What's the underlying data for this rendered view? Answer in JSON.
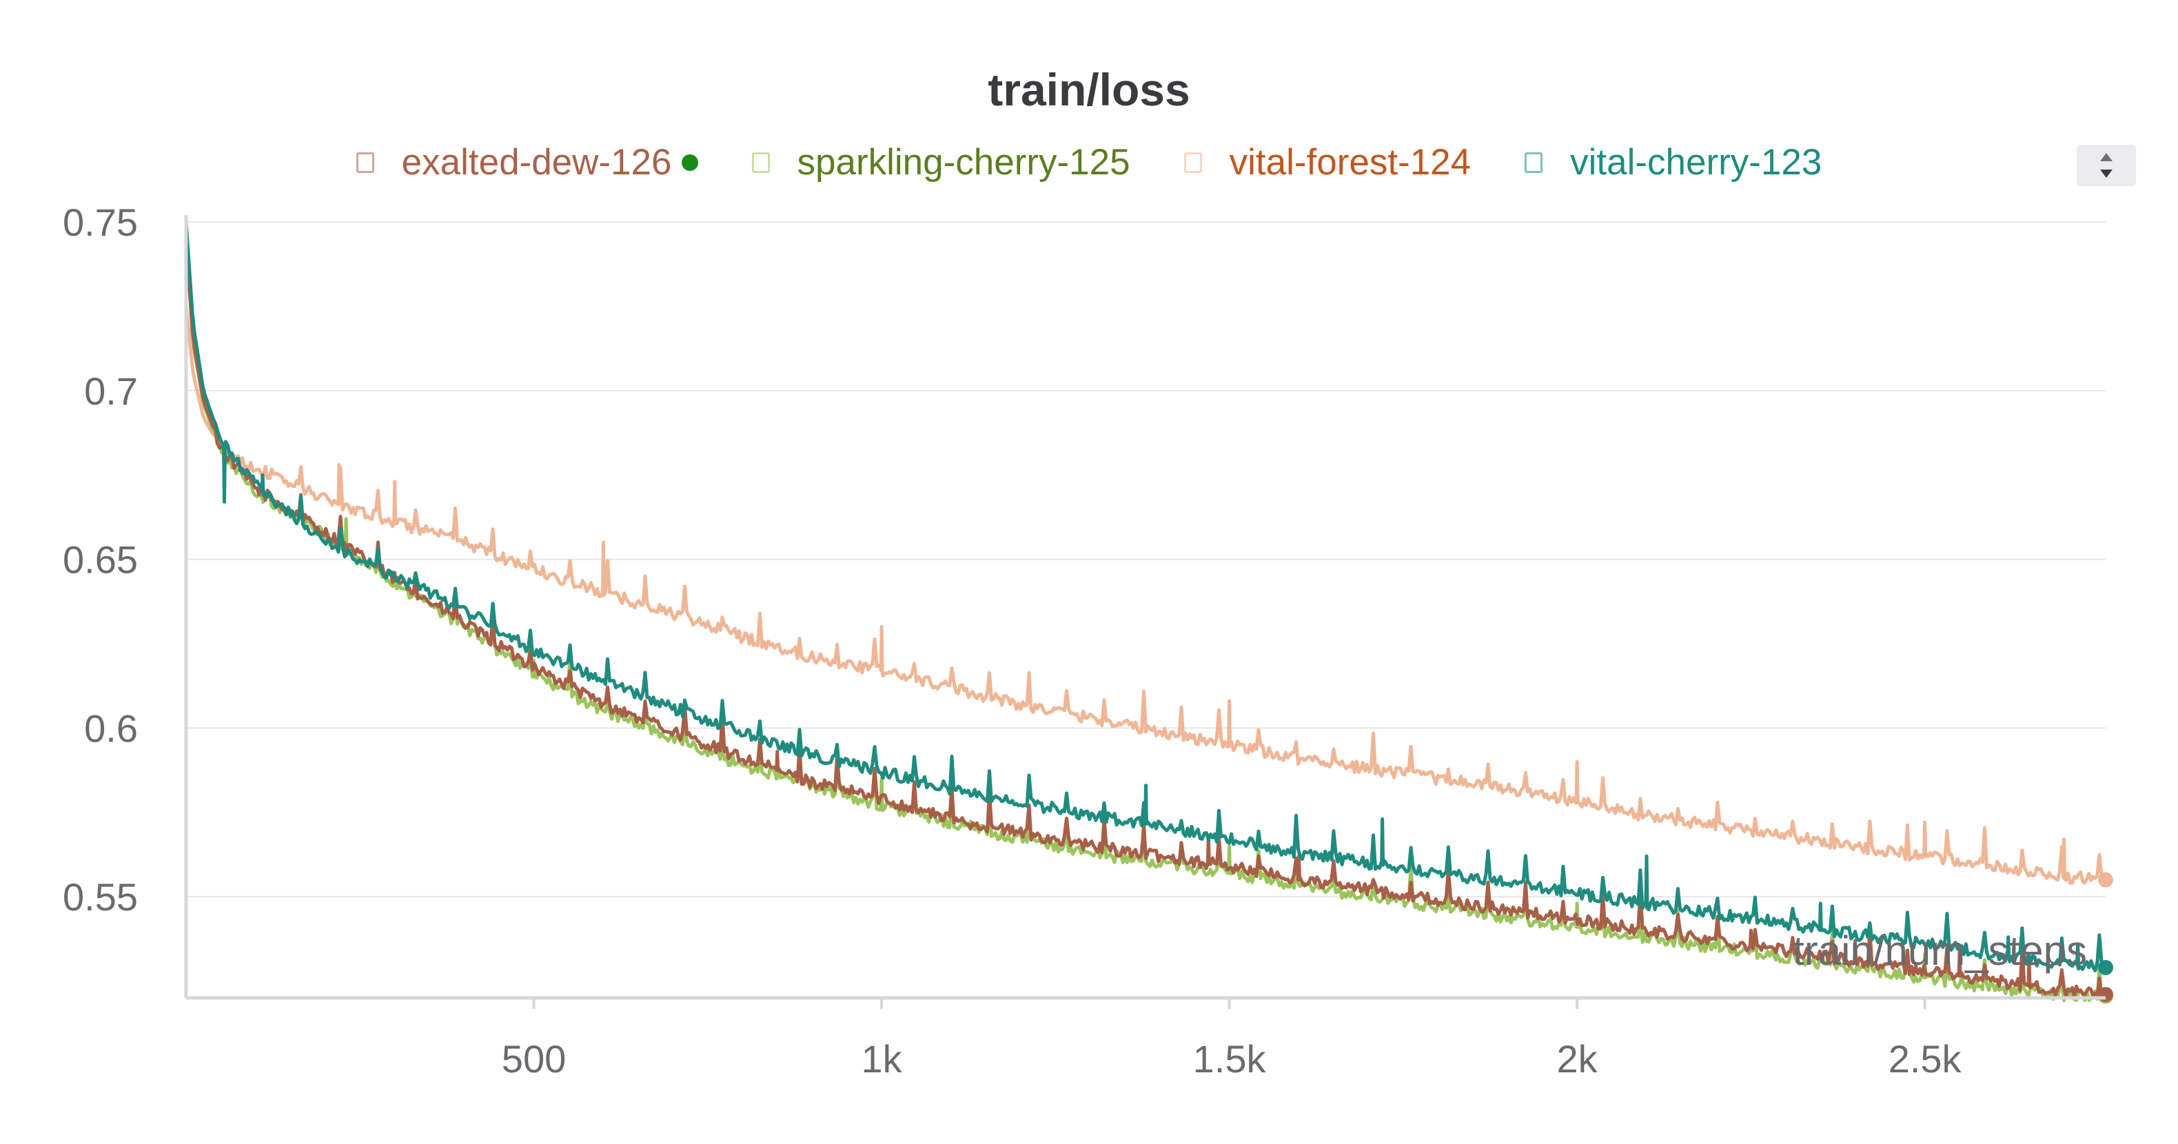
{
  "chart_data": {
    "type": "line",
    "title": "train/loss",
    "xlabel": "train/num_steps",
    "ylabel": "",
    "xlim": [
      0,
      2760
    ],
    "ylim": [
      0.52,
      0.75
    ],
    "x_ticks": [
      500,
      1000,
      1500,
      2000,
      2500
    ],
    "x_tick_labels": [
      "500",
      "1k",
      "1.5k",
      "2k",
      "2.5k"
    ],
    "y_ticks": [
      0.55,
      0.6,
      0.65,
      0.7,
      0.75
    ],
    "y_tick_labels": [
      "0.55",
      "0.6",
      "0.65",
      "0.7",
      "0.75"
    ],
    "grid": true,
    "legend_position": "top-center",
    "series": [
      {
        "name": "exalted-dew-126",
        "color": "#a85f47",
        "label_color": "#a8624a",
        "active_dot": true,
        "x": [
          0,
          10,
          25,
          50,
          100,
          200,
          300,
          400,
          500,
          600,
          700,
          800,
          900,
          1000,
          1100,
          1200,
          1300,
          1400,
          1500,
          1600,
          1700,
          1800,
          1900,
          2000,
          2100,
          2200,
          2300,
          2400,
          2500,
          2600,
          2700,
          2760
        ],
        "y": [
          0.745,
          0.715,
          0.697,
          0.683,
          0.671,
          0.658,
          0.644,
          0.631,
          0.618,
          0.607,
          0.599,
          0.591,
          0.584,
          0.579,
          0.573,
          0.569,
          0.565,
          0.562,
          0.559,
          0.555,
          0.552,
          0.549,
          0.546,
          0.543,
          0.54,
          0.537,
          0.534,
          0.531,
          0.528,
          0.525,
          0.522,
          0.521
        ],
        "spikes": [
          [
            300,
            0.646
          ],
          [
            850,
            0.593
          ],
          [
            1470,
            0.568
          ],
          [
            1600,
            0.562
          ],
          [
            2250,
            0.54
          ],
          [
            2400,
            0.537
          ],
          [
            2550,
            0.534
          ],
          [
            2650,
            0.532
          ]
        ]
      },
      {
        "name": "sparkling-cherry-125",
        "color": "#9bc45c",
        "label_color": "#5b7e1f",
        "active_dot": false,
        "x": [
          0,
          10,
          25,
          50,
          100,
          200,
          300,
          400,
          500,
          600,
          700,
          800,
          900,
          1000,
          1100,
          1200,
          1300,
          1400,
          1500,
          1600,
          1700,
          1800,
          1900,
          2000,
          2100,
          2200,
          2300,
          2400,
          2500,
          2600,
          2700,
          2760
        ],
        "y": [
          0.745,
          0.714,
          0.696,
          0.682,
          0.67,
          0.657,
          0.643,
          0.63,
          0.616,
          0.605,
          0.597,
          0.589,
          0.583,
          0.577,
          0.572,
          0.567,
          0.563,
          0.56,
          0.557,
          0.553,
          0.55,
          0.547,
          0.544,
          0.541,
          0.538,
          0.535,
          0.532,
          0.529,
          0.526,
          0.523,
          0.521,
          0.5205
        ],
        "spikes": [
          [
            230,
            0.662
          ],
          [
            330,
            0.645
          ],
          [
            500,
            0.62
          ],
          [
            1000,
            0.585
          ],
          [
            1500,
            0.565
          ],
          [
            2000,
            0.548
          ],
          [
            2500,
            0.533
          ]
        ]
      },
      {
        "name": "vital-forest-124",
        "color": "#efb696",
        "label_color": "#c0561f",
        "active_dot": false,
        "x": [
          0,
          10,
          25,
          50,
          100,
          200,
          300,
          400,
          500,
          600,
          700,
          800,
          900,
          1000,
          1100,
          1200,
          1300,
          1400,
          1500,
          1600,
          1700,
          1800,
          1900,
          2000,
          2100,
          2200,
          2300,
          2400,
          2500,
          2600,
          2700,
          2760
        ],
        "y": [
          0.725,
          0.705,
          0.692,
          0.683,
          0.677,
          0.668,
          0.661,
          0.655,
          0.647,
          0.64,
          0.634,
          0.627,
          0.621,
          0.617,
          0.612,
          0.607,
          0.603,
          0.599,
          0.595,
          0.591,
          0.588,
          0.585,
          0.582,
          0.578,
          0.574,
          0.571,
          0.568,
          0.565,
          0.562,
          0.559,
          0.556,
          0.555
        ],
        "spikes": [
          [
            220,
            0.678
          ],
          [
            300,
            0.673
          ],
          [
            600,
            0.655
          ],
          [
            1000,
            0.63
          ],
          [
            1500,
            0.608
          ],
          [
            2000,
            0.59
          ],
          [
            2500,
            0.572
          ],
          [
            2700,
            0.567
          ]
        ]
      },
      {
        "name": "vital-cherry-123",
        "color": "#1f8c80",
        "label_color": "#1e8c80",
        "active_dot": false,
        "x": [
          0,
          10,
          25,
          50,
          100,
          200,
          300,
          400,
          500,
          600,
          700,
          800,
          900,
          1000,
          1100,
          1200,
          1300,
          1400,
          1500,
          1600,
          1700,
          1800,
          1900,
          2000,
          2100,
          2200,
          2300,
          2400,
          2500,
          2600,
          2700,
          2760
        ],
        "y": [
          0.75,
          0.72,
          0.7,
          0.685,
          0.672,
          0.655,
          0.645,
          0.635,
          0.623,
          0.614,
          0.606,
          0.599,
          0.592,
          0.587,
          0.582,
          0.578,
          0.574,
          0.571,
          0.567,
          0.563,
          0.56,
          0.557,
          0.554,
          0.551,
          0.548,
          0.545,
          0.542,
          0.539,
          0.536,
          0.533,
          0.53,
          0.529
        ],
        "spikes": [
          [
            55,
            0.667
          ],
          [
            110,
            0.675
          ],
          [
            1380,
            0.583
          ],
          [
            1720,
            0.573
          ],
          [
            2100,
            0.562
          ],
          [
            2350,
            0.548
          ],
          [
            2620,
            0.538
          ],
          [
            2720,
            0.536
          ]
        ]
      }
    ]
  }
}
